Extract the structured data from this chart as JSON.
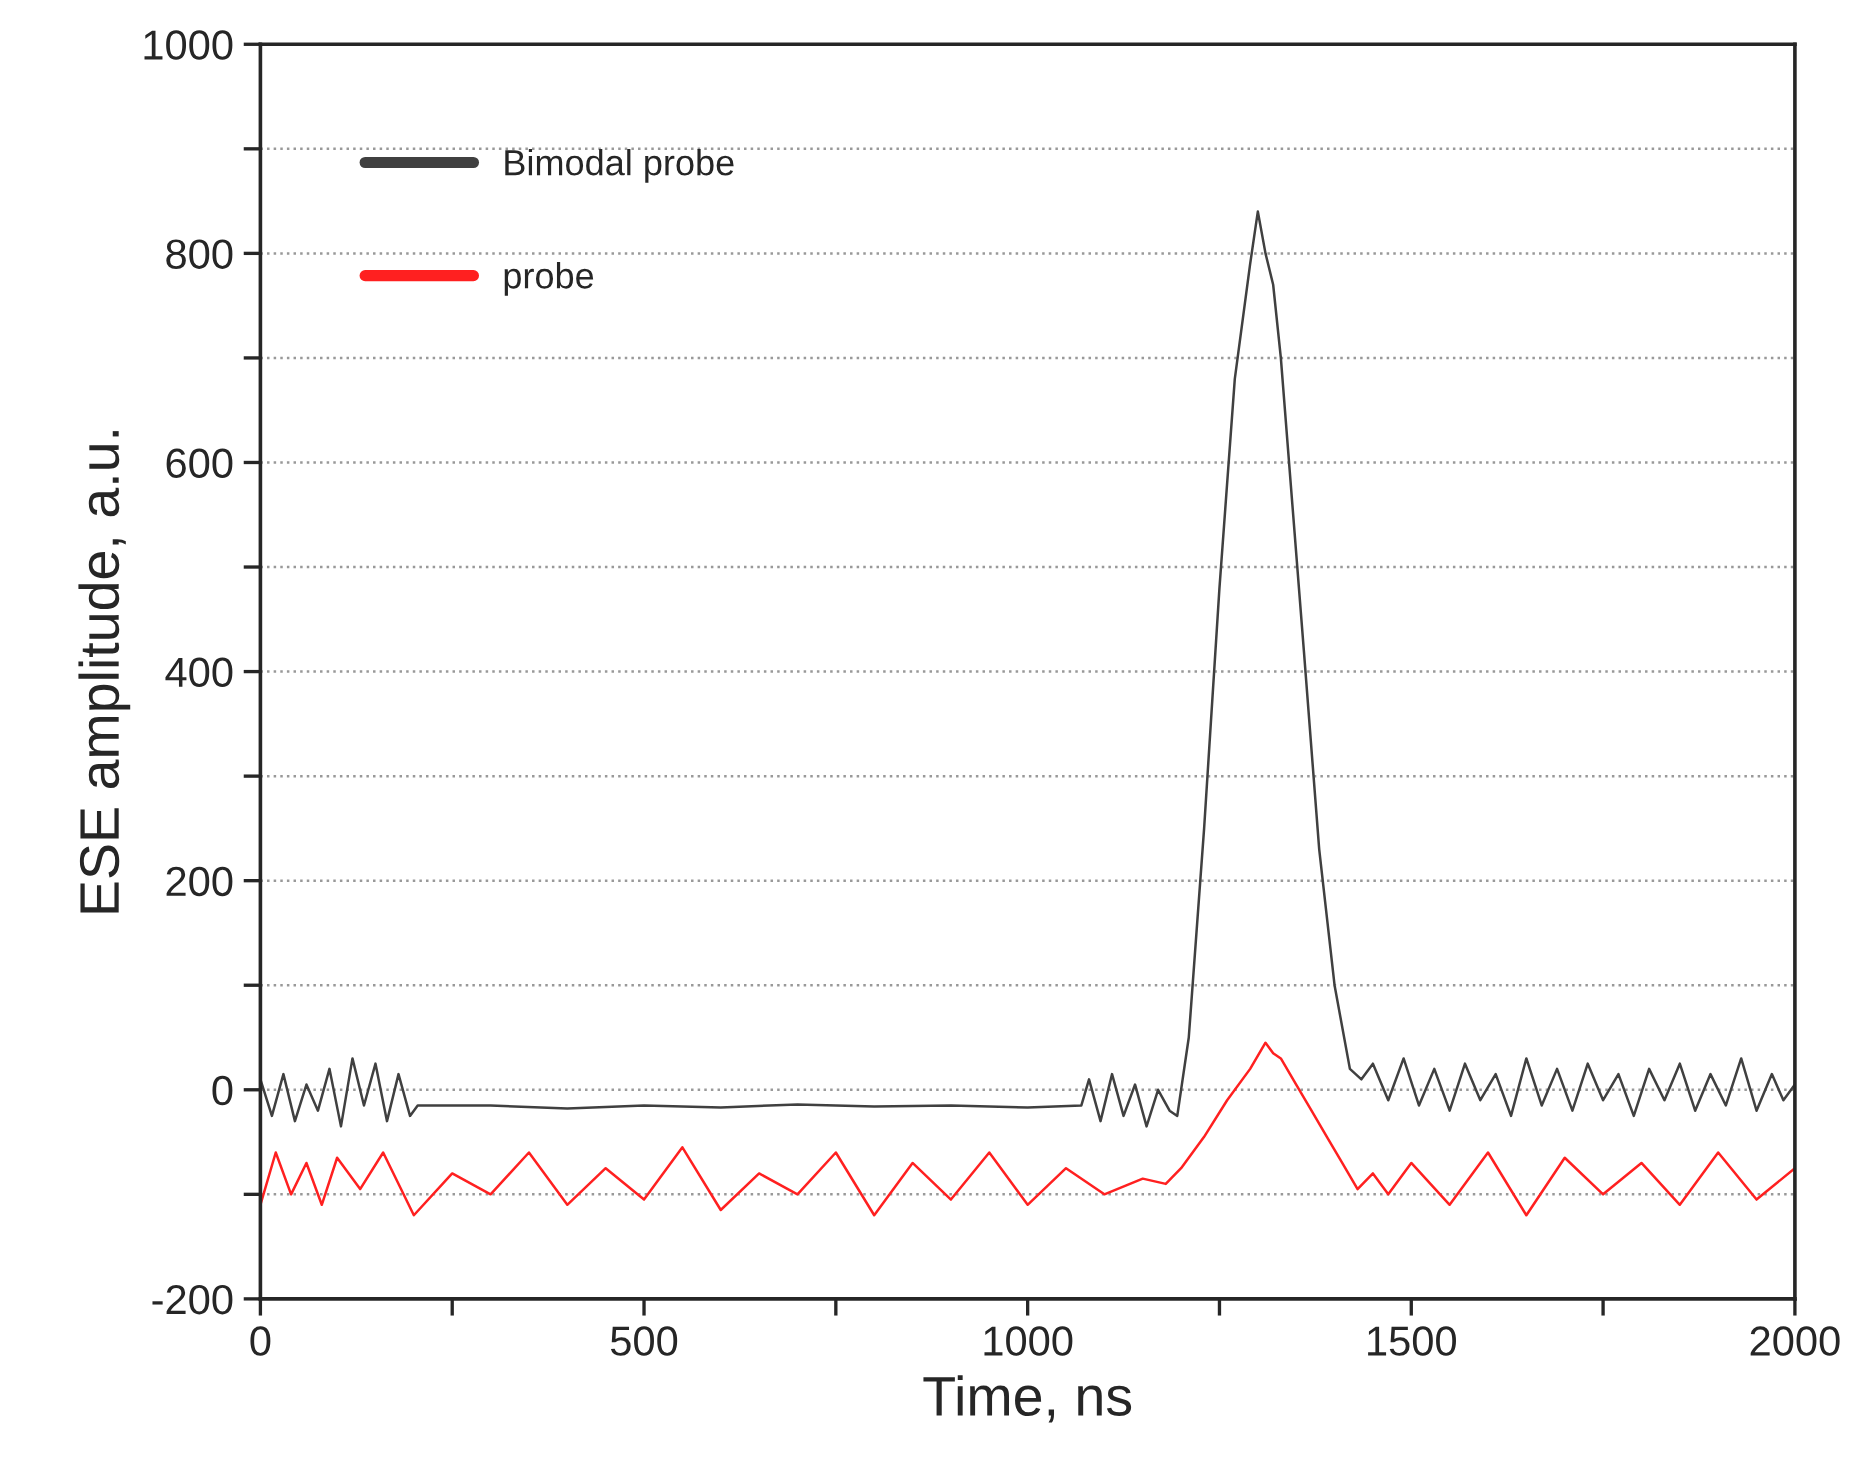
{
  "chart_data": {
    "type": "line",
    "xlabel": "Time, ns",
    "ylabel": "ESE amplitude, a.u.",
    "xlim": [
      0,
      2000
    ],
    "ylim": [
      -200,
      1000
    ],
    "xticks": [
      0,
      {
        "value": 250,
        "label": null
      },
      500,
      {
        "value": 750,
        "label": null
      },
      1000,
      {
        "value": 1250,
        "label": null
      },
      1500,
      {
        "value": 1750,
        "label": null
      },
      2000
    ],
    "yticks": [
      -200,
      {
        "value": -100,
        "label": null
      },
      0,
      {
        "value": 100,
        "label": null
      },
      200,
      {
        "value": 300,
        "label": null
      },
      400,
      {
        "value": 500,
        "label": null
      },
      600,
      {
        "value": 700,
        "label": null
      },
      800,
      {
        "value": 900,
        "label": null
      },
      1000
    ],
    "grid": "y",
    "legend": "top left",
    "series": [
      {
        "name": "Bimodal probe",
        "color": "#404040",
        "x": [
          0,
          15,
          30,
          45,
          60,
          75,
          90,
          105,
          120,
          135,
          150,
          165,
          180,
          195,
          205,
          300,
          400,
          500,
          600,
          700,
          800,
          900,
          1000,
          1070,
          1080,
          1095,
          1110,
          1125,
          1140,
          1155,
          1170,
          1185,
          1195,
          1210,
          1230,
          1250,
          1270,
          1290,
          1300,
          1310,
          1320,
          1330,
          1345,
          1360,
          1380,
          1400,
          1420,
          1435,
          1450,
          1470,
          1490,
          1510,
          1530,
          1550,
          1570,
          1590,
          1610,
          1630,
          1650,
          1670,
          1690,
          1710,
          1730,
          1750,
          1770,
          1790,
          1810,
          1830,
          1850,
          1870,
          1890,
          1910,
          1930,
          1950,
          1970,
          1985,
          2000
        ],
        "values": [
          10,
          -25,
          15,
          -30,
          5,
          -20,
          20,
          -35,
          30,
          -15,
          25,
          -30,
          15,
          -25,
          -15,
          -15,
          -18,
          -15,
          -17,
          -14,
          -16,
          -15,
          -17,
          -15,
          10,
          -30,
          15,
          -25,
          5,
          -35,
          0,
          -20,
          -25,
          50,
          250,
          480,
          680,
          790,
          840,
          800,
          770,
          700,
          560,
          420,
          230,
          100,
          20,
          10,
          25,
          -10,
          30,
          -15,
          20,
          -20,
          25,
          -10,
          15,
          -25,
          30,
          -15,
          20,
          -20,
          25,
          -10,
          15,
          -25,
          20,
          -10,
          25,
          -20,
          15,
          -15,
          30,
          -20,
          15,
          -10,
          5
        ]
      },
      {
        "name": "probe",
        "color": "#ff2020",
        "x": [
          0,
          20,
          40,
          60,
          80,
          100,
          130,
          160,
          200,
          250,
          300,
          350,
          400,
          450,
          500,
          550,
          600,
          650,
          700,
          750,
          800,
          850,
          900,
          950,
          1000,
          1050,
          1100,
          1150,
          1180,
          1200,
          1230,
          1260,
          1290,
          1310,
          1320,
          1330,
          1350,
          1370,
          1390,
          1410,
          1430,
          1450,
          1470,
          1500,
          1550,
          1600,
          1650,
          1700,
          1750,
          1800,
          1850,
          1900,
          1950,
          2000
        ],
        "values": [
          -110,
          -60,
          -100,
          -70,
          -110,
          -65,
          -95,
          -60,
          -120,
          -80,
          -100,
          -60,
          -110,
          -75,
          -105,
          -55,
          -115,
          -80,
          -100,
          -60,
          -120,
          -70,
          -105,
          -60,
          -110,
          -75,
          -100,
          -85,
          -90,
          -75,
          -45,
          -10,
          20,
          45,
          35,
          30,
          5,
          -20,
          -45,
          -70,
          -95,
          -80,
          -100,
          -70,
          -110,
          -60,
          -120,
          -65,
          -100,
          -70,
          -110,
          -60,
          -105,
          -75
        ]
      }
    ]
  }
}
